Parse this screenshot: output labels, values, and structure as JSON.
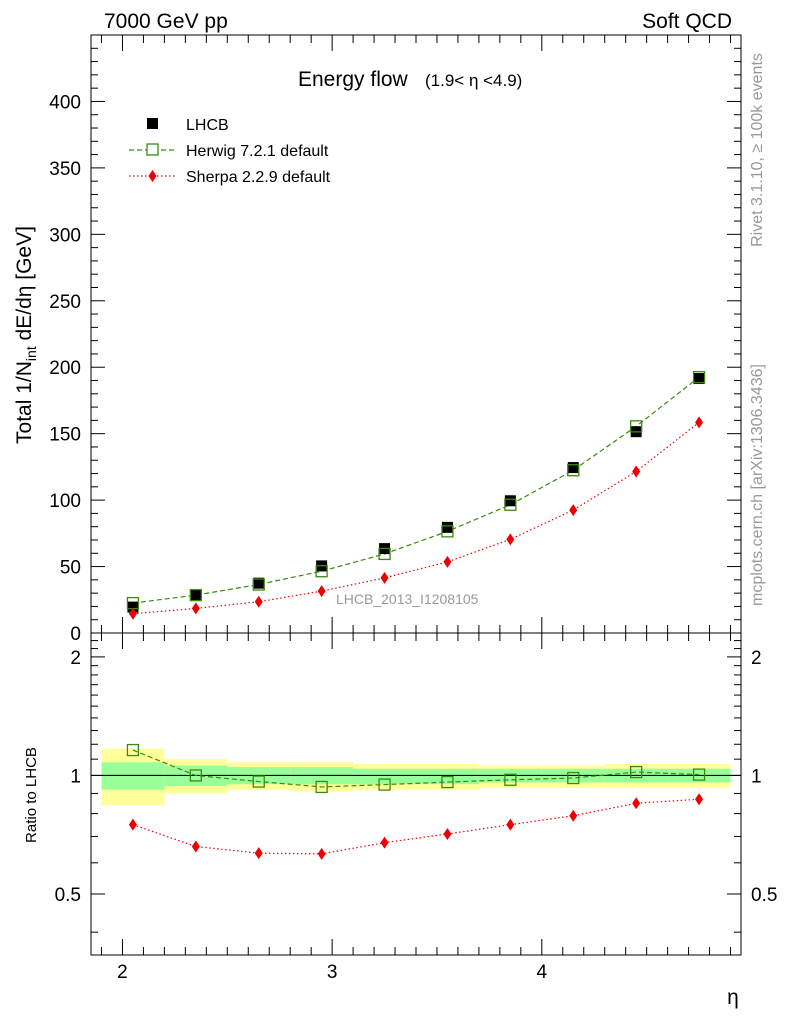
{
  "header": {
    "left": "7000 GeV pp",
    "right": "Soft QCD"
  },
  "side_labels": {
    "rivet": "Rivet 3.1.10, ≥ 100k events",
    "mcplots": "mcplots.cern.ch [arXiv:1306.3436]"
  },
  "chart_data": [
    {
      "type": "scatter",
      "title_main": "Energy flow",
      "title_sub": "(1.9< η <4.9)",
      "analysis_label": "LHCB_2013_I1208105",
      "ylabel_pre": "Total 1/N",
      "ylabel_sub": "int",
      "ylabel_post": " dE/dη [GeV]",
      "xlim": [
        1.85,
        4.95
      ],
      "ylim": [
        0,
        450
      ],
      "yticks": [
        0,
        50,
        100,
        150,
        200,
        250,
        300,
        350,
        400
      ],
      "yticks_labels": [
        "0",
        "50",
        "100",
        "150",
        "200",
        "250",
        "300",
        "350",
        "400"
      ],
      "legend_position": "top-left",
      "x": [
        2.05,
        2.35,
        2.65,
        2.95,
        3.25,
        3.55,
        3.85,
        4.15,
        4.45,
        4.75
      ],
      "series": [
        {
          "name": "LHCB",
          "marker": "filled-square",
          "color": "#000000",
          "values": [
            19.5,
            28.5,
            37.5,
            50.5,
            63.5,
            79.5,
            99.5,
            124.5,
            151.5,
            191.5
          ]
        },
        {
          "name": "Herwig 7.2.1 default",
          "marker": "open-square",
          "line": "dashed",
          "color": "#3a8a10",
          "values": [
            22.5,
            28.5,
            36.5,
            46.5,
            59.5,
            76.5,
            96.5,
            122.5,
            155.5,
            192.5
          ]
        },
        {
          "name": "Sherpa 2.2.9 default",
          "marker": "diamond",
          "line": "dotted",
          "color": "#ee0000",
          "values": [
            14.5,
            18.5,
            23.5,
            31.5,
            41.5,
            53.5,
            70.5,
            92.5,
            121.5,
            158.5
          ]
        }
      ]
    },
    {
      "type": "scatter",
      "ylabel": "Ratio to LHCB",
      "xlabel": "η",
      "xlim": [
        1.85,
        4.95
      ],
      "ylim": [
        0.35,
        2.3
      ],
      "xticks": [
        2,
        3,
        4
      ],
      "xticks_labels": [
        "2",
        "3",
        "4"
      ],
      "yticks": [
        0.5,
        1,
        2
      ],
      "yticks_labels": [
        "0.5",
        "1",
        "2"
      ],
      "bins": [
        [
          1.9,
          2.2
        ],
        [
          2.2,
          2.5
        ],
        [
          2.5,
          2.8
        ],
        [
          2.8,
          3.1
        ],
        [
          3.1,
          3.4
        ],
        [
          3.4,
          3.7
        ],
        [
          3.7,
          4.0
        ],
        [
          4.0,
          4.3
        ],
        [
          4.3,
          4.6
        ],
        [
          4.6,
          4.9
        ]
      ],
      "band_yellow": [
        [
          0.84,
          1.17
        ],
        [
          0.9,
          1.1
        ],
        [
          0.92,
          1.08
        ],
        [
          0.91,
          1.08
        ],
        [
          0.92,
          1.07
        ],
        [
          0.92,
          1.07
        ],
        [
          0.93,
          1.06
        ],
        [
          0.93,
          1.06
        ],
        [
          0.93,
          1.07
        ],
        [
          0.93,
          1.07
        ]
      ],
      "band_green": [
        [
          0.92,
          1.08
        ],
        [
          0.94,
          1.06
        ],
        [
          0.95,
          1.05
        ],
        [
          0.95,
          1.05
        ],
        [
          0.95,
          1.04
        ],
        [
          0.95,
          1.04
        ],
        [
          0.96,
          1.04
        ],
        [
          0.96,
          1.04
        ],
        [
          0.96,
          1.04
        ],
        [
          0.96,
          1.04
        ]
      ],
      "x": [
        2.05,
        2.35,
        2.65,
        2.95,
        3.25,
        3.55,
        3.85,
        4.15,
        4.45,
        4.75
      ],
      "series": [
        {
          "name": "Herwig 7.2.1 default",
          "marker": "open-square",
          "line": "dashed",
          "color": "#3a8a10",
          "values": [
            1.16,
            1.0,
            0.965,
            0.935,
            0.948,
            0.962,
            0.975,
            0.985,
            1.02,
            1.005
          ]
        },
        {
          "name": "Sherpa 2.2.9 default",
          "marker": "diamond",
          "line": "dotted",
          "color": "#ee0000",
          "values": [
            0.75,
            0.66,
            0.635,
            0.632,
            0.675,
            0.71,
            0.75,
            0.79,
            0.85,
            0.87
          ]
        }
      ]
    }
  ]
}
